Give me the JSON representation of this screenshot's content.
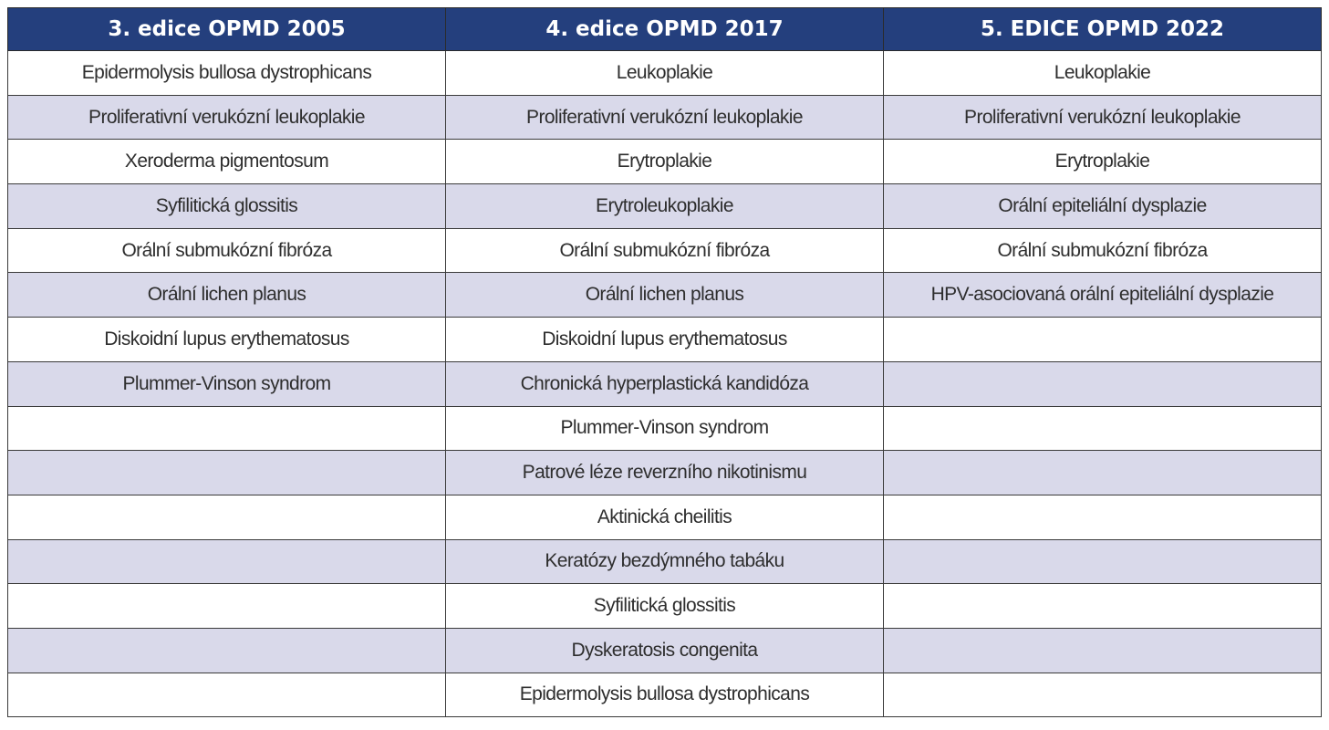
{
  "table": {
    "headers": [
      "3. edice OPMD 2005",
      "4. edice OPMD 2017",
      "5. EDICE OPMD 2022"
    ],
    "rows": [
      [
        "Epidermolysis bullosa dystrophicans",
        "Leukoplakie",
        "Leukoplakie"
      ],
      [
        "Proliferativní verukózní leukoplakie",
        "Proliferativní verukózní leukoplakie",
        "Proliferativní verukózní leukoplakie"
      ],
      [
        "Xeroderma pigmentosum",
        "Erytroplakie",
        "Erytroplakie"
      ],
      [
        "Syfilitická glossitis",
        "Erytroleukoplakie",
        "Orální epiteliální dysplazie"
      ],
      [
        "Orální submukózní fibróza",
        "Orální submukózní fibróza",
        "Orální submukózní fibróza"
      ],
      [
        "Orální lichen planus",
        "Orální lichen planus",
        "HPV-asociovaná orální epiteliální dysplazie"
      ],
      [
        "Diskoidní lupus erythematosus",
        "Diskoidní lupus erythematosus",
        ""
      ],
      [
        "Plummer-Vinson syndrom",
        "Chronická hyperplastická kandidóza",
        ""
      ],
      [
        "",
        "Plummer-Vinson syndrom",
        ""
      ],
      [
        "",
        "Patrové léze reverzního nikotinismu",
        ""
      ],
      [
        "",
        "Aktinická cheilitis",
        ""
      ],
      [
        "",
        "Keratózy bezdýmného tabáku",
        ""
      ],
      [
        "",
        "Syfilitická glossitis",
        ""
      ],
      [
        "",
        "Dyskeratosis congenita",
        ""
      ],
      [
        "",
        "Epidermolysis bullosa dystrophicans",
        ""
      ]
    ]
  },
  "colors": {
    "header_bg": "#243f7d",
    "header_text": "#ffffff",
    "row_alt_bg": "#d9d9ea",
    "row_bg": "#ffffff"
  }
}
